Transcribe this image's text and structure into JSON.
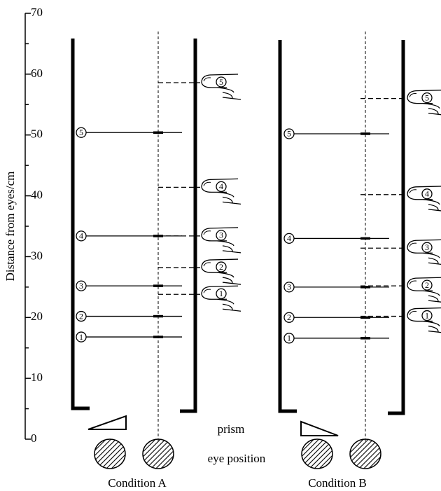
{
  "axis": {
    "label": "Distance from eyes/cm",
    "ylim": [
      0,
      70
    ],
    "yticks": [
      0,
      10,
      20,
      30,
      40,
      50,
      60,
      70
    ],
    "minor_yticks": [
      5,
      15,
      25,
      35,
      45,
      55,
      65
    ]
  },
  "labels": {
    "prism": "prism",
    "eye_position": "eye position"
  },
  "conditions": [
    {
      "label": "Condition A",
      "targets": [
        {
          "label": "1",
          "value": 16.8
        },
        {
          "label": "2",
          "value": 20.2
        },
        {
          "label": "3",
          "value": 25.2
        },
        {
          "label": "4",
          "value": 33.4
        },
        {
          "label": "5",
          "value": 50.4
        }
      ],
      "pointing": [
        {
          "label": "1",
          "value": 23.8
        },
        {
          "label": "2",
          "value": 28.2
        },
        {
          "label": "3",
          "value": 33.4
        },
        {
          "label": "4",
          "value": 41.4
        },
        {
          "label": "5",
          "value": 58.6
        }
      ]
    },
    {
      "label": "Condition B",
      "targets": [
        {
          "label": "1",
          "value": 16.6
        },
        {
          "label": "2",
          "value": 20.0
        },
        {
          "label": "3",
          "value": 25.0
        },
        {
          "label": "4",
          "value": 33.0
        },
        {
          "label": "5",
          "value": 50.2
        }
      ],
      "pointing": [
        {
          "label": "1",
          "value": 20.2
        },
        {
          "label": "2",
          "value": 25.2
        },
        {
          "label": "3",
          "value": 31.4
        },
        {
          "label": "4",
          "value": 40.2
        },
        {
          "label": "5",
          "value": 56.0
        }
      ]
    }
  ]
}
